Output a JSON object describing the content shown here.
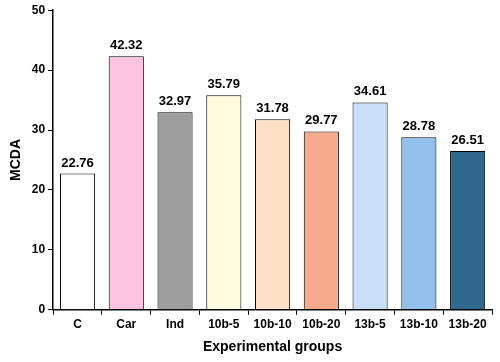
{
  "chart_data": {
    "type": "bar",
    "x_label": "Experimental groups",
    "y_label": "MCDA",
    "categories": [
      "C",
      "Car",
      "Ind",
      "10b-5",
      "10b-10",
      "10b-20",
      "13b-5",
      "13b-10",
      "13b-20"
    ],
    "values": [
      22.76,
      42.32,
      32.97,
      35.79,
      31.78,
      29.77,
      34.61,
      28.78,
      26.51
    ],
    "colors": [
      "#ffffff",
      "#fcc3df",
      "#9e9e9e",
      "#fffbdc",
      "#fde0c6",
      "#f6a98b",
      "#c7e0f8",
      "#93c1ee",
      "#2f6a8e"
    ],
    "ylim": [
      0,
      50
    ],
    "yticks": [
      0,
      10,
      20,
      30,
      40,
      50
    ],
    "grid": false,
    "data_labels": true
  }
}
